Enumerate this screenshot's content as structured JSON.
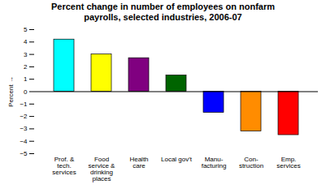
{
  "chart_data": {
    "type": "bar",
    "title": "Percent change in number of employees on nonfarm\npayrolls, selected industries, 2006-07",
    "categories": [
      "Prof. &\ntech.\nservices",
      "Food\nservice &\ndrinking\nplaces",
      "Health\ncare",
      "Local gov't",
      "Manu-\nfacturing",
      "Con-\nstruction",
      "Emp.\nservices"
    ],
    "values": [
      4.2,
      3.0,
      2.7,
      1.3,
      -1.7,
      -3.2,
      -3.5
    ],
    "colors": [
      "#00FFFF",
      "#FFFF00",
      "#800080",
      "#006400",
      "#0000FF",
      "#FF8C00",
      "#FF0000"
    ],
    "ylabel": "Percent",
    "ylim": [
      -5,
      5
    ],
    "yticks": [
      -5,
      -4,
      -3,
      -2,
      -1,
      0,
      1,
      2,
      3,
      4,
      5
    ],
    "grid": false
  }
}
